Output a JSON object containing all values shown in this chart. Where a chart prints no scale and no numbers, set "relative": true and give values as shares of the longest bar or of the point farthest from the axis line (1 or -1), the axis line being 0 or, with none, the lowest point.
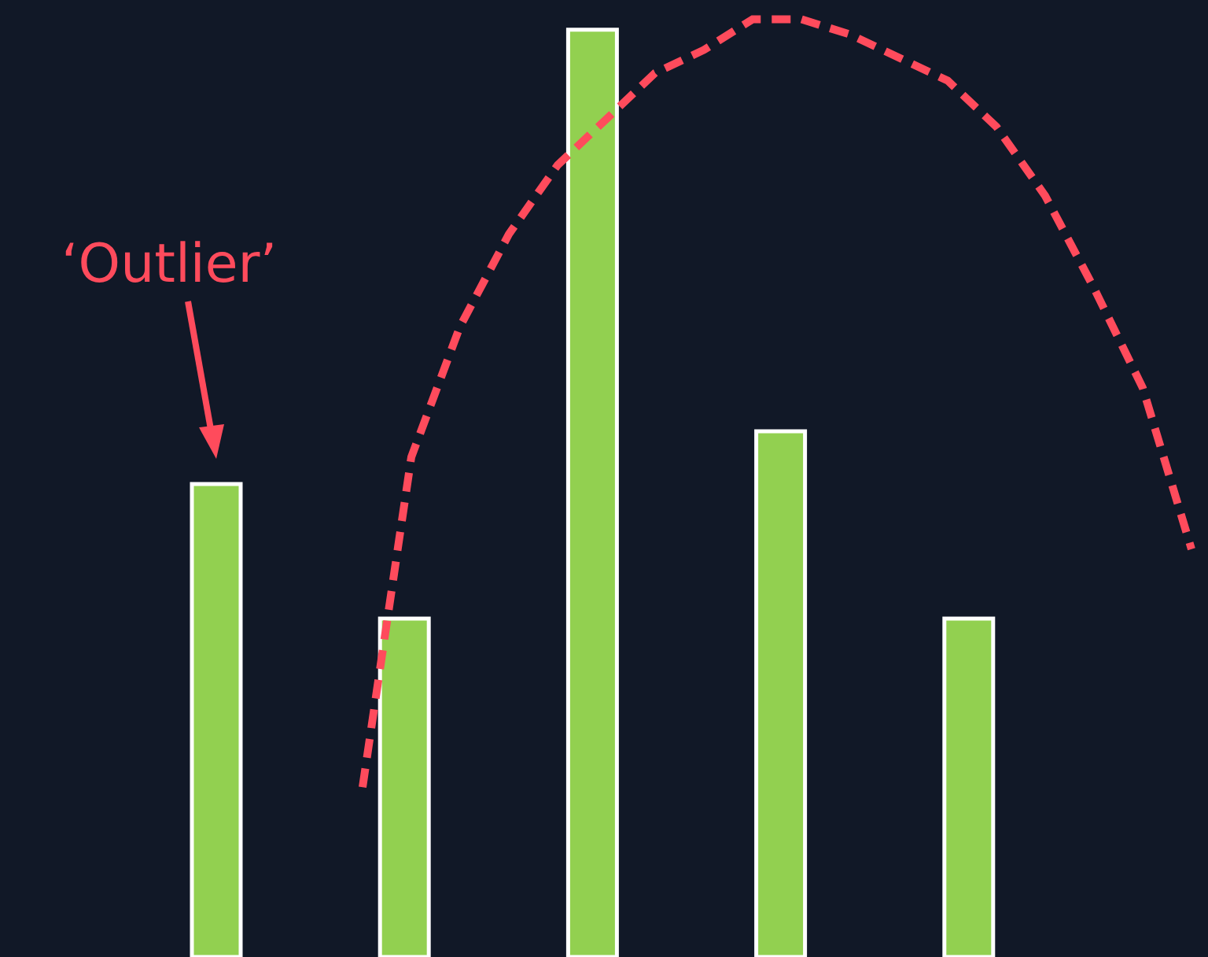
{
  "chart_data": [
    {
      "type": "bar",
      "relative": true,
      "categories": [
        null,
        null,
        null,
        null,
        null
      ],
      "values": [
        0.51,
        0.365,
        1,
        0.567,
        0.365
      ],
      "color": "#92d050",
      "annotations": [
        "‘Outlier’"
      ]
    },
    {
      "type": "line",
      "relative": true,
      "categories": [
        null,
        null,
        null,
        null,
        null,
        null,
        null,
        null,
        null,
        null,
        null,
        null,
        null,
        null,
        null,
        null,
        null,
        null
      ],
      "values": [
        0,
        0.43,
        0.6,
        0.72,
        0.81,
        0.87,
        0.93,
        0.96,
        1,
        1,
        0.98,
        0.95,
        0.92,
        0.86,
        0.77,
        0.65,
        0.52,
        0.31
      ],
      "color": "#ff4b5c",
      "line_style": "dashed",
      "marker": "none"
    }
  ]
}
